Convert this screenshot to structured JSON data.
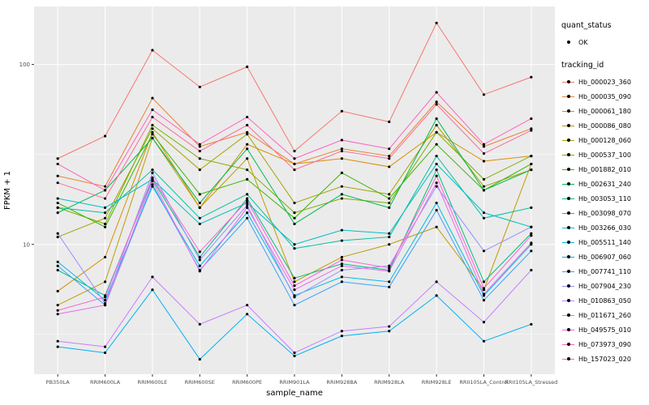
{
  "page": {
    "background": "#FFFFFF",
    "panel_bg": "#EBEBEB",
    "grid_color": "#FFFFFF",
    "point_color": "#000000"
  },
  "legend": {
    "quant_status": {
      "title": "quant_status",
      "items": [
        {
          "label": "OK"
        }
      ]
    },
    "tracking_id": {
      "title": "tracking_id"
    }
  },
  "chart_data": {
    "type": "line",
    "title": "",
    "xlabel": "sample_name",
    "ylabel": "FPKM + 1",
    "y_scale": "log10",
    "ylim": [
      1.9,
      210
    ],
    "y_ticks": [
      10,
      100
    ],
    "legend_position": "right",
    "grid": true,
    "categories": [
      "PB350LA",
      "RRIM600LA",
      "RRIM600LE",
      "RRIM600SE",
      "RRIM600PE",
      "RRIM901LA",
      "RRIM928BA",
      "RRIM928LA",
      "RRIM928LE",
      "RRII105LA_Control",
      "RRII105LA_Stressed"
    ],
    "series": [
      {
        "name": "Hb_000023_360",
        "color": "#F8766D",
        "values": [
          30,
          40,
          120,
          75,
          97,
          33,
          55,
          48,
          170,
          68,
          85
        ]
      },
      {
        "name": "Hb_000035_090",
        "color": "#EA8331",
        "values": [
          24,
          21,
          65,
          35,
          42,
          28,
          34,
          31,
          62,
          35,
          44
        ]
      },
      {
        "name": "Hb_000061_180",
        "color": "#D89000",
        "values": [
          5.5,
          8.5,
          42,
          16,
          36,
          28,
          30,
          27,
          42,
          29,
          31
        ]
      },
      {
        "name": "Hb_000086_080",
        "color": "#C09B00",
        "values": [
          4.6,
          6.2,
          39,
          16,
          30,
          6.2,
          8.5,
          10,
          12.5,
          5.6,
          28
        ]
      },
      {
        "name": "Hb_000128_060",
        "color": "#A3A500",
        "values": [
          11,
          14,
          44,
          26,
          41,
          17,
          21,
          19,
          46,
          21,
          26
        ]
      },
      {
        "name": "Hb_000537_100",
        "color": "#7CAE00",
        "values": [
          16,
          13,
          46,
          30,
          26,
          15,
          18,
          17,
          42,
          23,
          31
        ]
      },
      {
        "name": "Hb_001882_010",
        "color": "#39B600",
        "values": [
          17,
          12.5,
          41,
          19,
          23,
          14,
          25,
          18,
          36,
          20,
          28
        ]
      },
      {
        "name": "Hb_002631_240",
        "color": "#00BB4E",
        "values": [
          15,
          20,
          39,
          17,
          34,
          13,
          19,
          16,
          50,
          20,
          26
        ]
      },
      {
        "name": "Hb_003053_110",
        "color": "#00BF7D",
        "values": [
          7.2,
          5.2,
          23,
          8.5,
          18,
          6.5,
          7.8,
          7.2,
          26,
          6.2,
          11.5
        ]
      },
      {
        "name": "Hb_003098_070",
        "color": "#00C1A3",
        "values": [
          16,
          15,
          26,
          14,
          19,
          9.5,
          10.5,
          11,
          31,
          14,
          16
        ]
      },
      {
        "name": "Hb_003266_030",
        "color": "#00BFC4",
        "values": [
          18,
          16,
          23,
          13,
          17,
          10,
          12,
          11.5,
          28,
          15,
          12.5
        ]
      },
      {
        "name": "Hb_005511_140",
        "color": "#00BAE0",
        "values": [
          8,
          4.9,
          21,
          7.6,
          15,
          5.2,
          6.6,
          6.2,
          17,
          5.2,
          10
        ]
      },
      {
        "name": "Hb_006907_060",
        "color": "#00B0F6",
        "values": [
          2.7,
          2.5,
          5.6,
          2.3,
          4.1,
          2.4,
          3.1,
          3.3,
          5.2,
          2.9,
          3.6
        ]
      },
      {
        "name": "Hb_007741_110",
        "color": "#35A2FF",
        "values": [
          7.6,
          4.6,
          21.5,
          7.2,
          14,
          4.6,
          6.2,
          5.8,
          15.5,
          4.9,
          9.2
        ]
      },
      {
        "name": "Hb_007904_230",
        "color": "#9590FF",
        "values": [
          11.5,
          4.7,
          25,
          8.2,
          16.5,
          5.1,
          7.2,
          7.6,
          21,
          9.2,
          12.5
        ]
      },
      {
        "name": "Hb_010863_050",
        "color": "#C77CFF",
        "values": [
          2.9,
          2.7,
          6.6,
          3.6,
          4.6,
          2.5,
          3.3,
          3.5,
          6.2,
          3.7,
          7.2
        ]
      },
      {
        "name": "Hb_011671_260",
        "color": "#E76BF3",
        "values": [
          4.1,
          4.6,
          22.5,
          7.1,
          16,
          5.6,
          7.6,
          7.1,
          22,
          5.3,
          10.2
        ]
      },
      {
        "name": "Hb_049575_010",
        "color": "#FA62DB",
        "values": [
          4.3,
          5.1,
          23.5,
          9.1,
          17.5,
          5.9,
          8.2,
          7.4,
          24,
          5.7,
          11.2
        ]
      },
      {
        "name": "Hb_073973_090",
        "color": "#FF62BC",
        "values": [
          28,
          20,
          56,
          36,
          51,
          30,
          38,
          34,
          70,
          36,
          50
        ]
      },
      {
        "name": "Hb_157023_020",
        "color": "#FF6A98",
        "values": [
          22,
          18,
          51,
          33,
          46,
          26,
          33,
          30,
          60,
          32,
          43
        ]
      }
    ]
  }
}
